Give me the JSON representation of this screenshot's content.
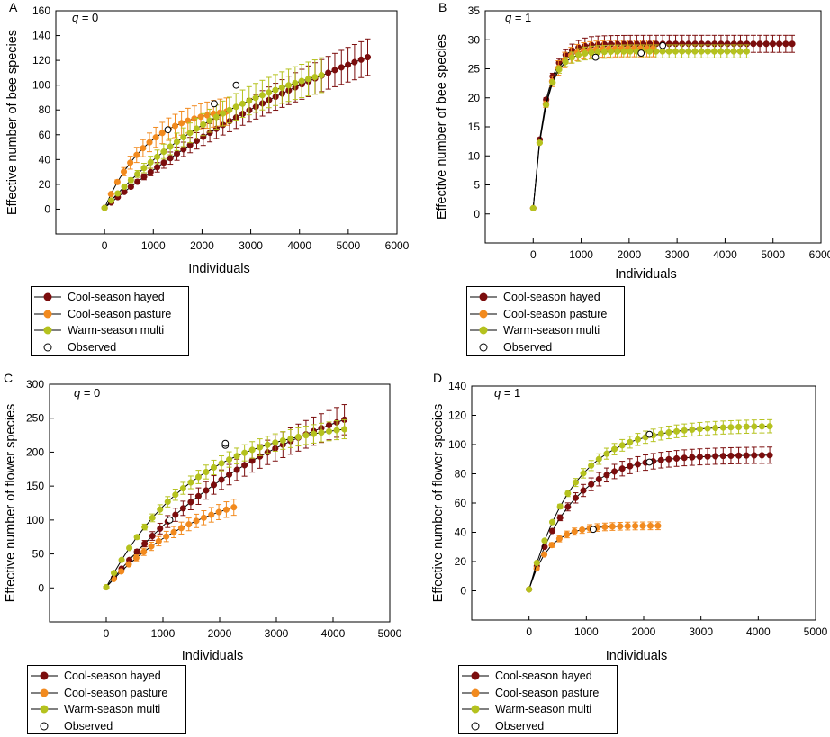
{
  "colors": {
    "hayed": "#7b0d0d",
    "pasture": "#f28a1e",
    "warm": "#b5c21e",
    "observed_fill": "#ffffff",
    "line": "#000000"
  },
  "legend": [
    {
      "label": "Cool-season hayed",
      "key": "hayed"
    },
    {
      "label": "Cool-season pasture",
      "key": "pasture"
    },
    {
      "label": "Warm-season multi",
      "key": "warm"
    },
    {
      "label": "Observed",
      "key": "observed"
    }
  ],
  "chart_data": [
    {
      "panel": "A",
      "type": "line",
      "annotation": "q = 0",
      "xlabel": "Individuals",
      "ylabel": "Effective number of bee species",
      "xlim": [
        -1000,
        6000
      ],
      "ylim": [
        -20,
        160
      ],
      "xticks": [
        0,
        1000,
        2000,
        3000,
        4000,
        5000,
        6000
      ],
      "yticks": [
        0,
        20,
        40,
        60,
        80,
        100,
        120,
        140,
        160
      ],
      "series": [
        {
          "name": "Cool-season hayed",
          "color_key": "hayed",
          "xmax": 5400,
          "asymptote": 220,
          "k": 0.00015,
          "halfwidth_frac": 0.12,
          "observed": [
            2700,
            100
          ]
        },
        {
          "name": "Cool-season pasture",
          "color_key": "pasture",
          "xmax": 2500,
          "asymptote": 84,
          "k": 0.0011,
          "halfwidth_frac": 0.14,
          "observed": [
            1300,
            64
          ]
        },
        {
          "name": "Warm-season multi",
          "color_key": "warm",
          "xmax": 4450,
          "asymptote": 142,
          "k": 0.00032,
          "halfwidth_frac": 0.13,
          "observed": [
            2250,
            85
          ]
        }
      ],
      "start_value": 1
    },
    {
      "panel": "B",
      "type": "line",
      "annotation": "q = 1",
      "xlabel": "Individuals",
      "ylabel": "Effective number of bee species",
      "xlim": [
        -1000,
        6000
      ],
      "ylim": [
        -5,
        35
      ],
      "xticks": [
        0,
        1000,
        2000,
        3000,
        4000,
        5000,
        6000
      ],
      "yticks": [
        0,
        5,
        10,
        15,
        20,
        25,
        30,
        35
      ],
      "series": [
        {
          "name": "Cool-season hayed",
          "color_key": "hayed",
          "xmax": 5400,
          "asymptote": 29.3,
          "k": 0.004,
          "halfwidth_frac": 0.05,
          "observed": [
            2700,
            29
          ]
        },
        {
          "name": "Cool-season pasture",
          "color_key": "pasture",
          "xmax": 2500,
          "asymptote": 28.5,
          "k": 0.004,
          "halfwidth_frac": 0.05,
          "observed": [
            1300,
            27
          ]
        },
        {
          "name": "Warm-season multi",
          "color_key": "warm",
          "xmax": 4450,
          "asymptote": 28.0,
          "k": 0.004,
          "halfwidth_frac": 0.04,
          "observed": [
            2250,
            27.7
          ]
        }
      ],
      "start_value": 1
    },
    {
      "panel": "C",
      "type": "line",
      "annotation": "q = 0",
      "xlabel": "Individuals",
      "ylabel": "Effective number of flower species",
      "xlim": [
        -1000,
        5000
      ],
      "ylim": [
        -50,
        300
      ],
      "xticks": [
        0,
        1000,
        2000,
        3000,
        4000,
        5000
      ],
      "yticks": [
        0,
        50,
        100,
        150,
        200,
        250,
        300
      ],
      "series": [
        {
          "name": "Cool-season hayed",
          "color_key": "hayed",
          "xmax": 4200,
          "asymptote": 340,
          "k": 0.00031,
          "halfwidth_frac": 0.09,
          "observed": [
            2100,
            210
          ]
        },
        {
          "name": "Cool-season pasture",
          "color_key": "pasture",
          "xmax": 2250,
          "asymptote": 160,
          "k": 0.0006,
          "halfwidth_frac": 0.1,
          "observed": [
            1120,
            100
          ]
        },
        {
          "name": "Warm-season multi",
          "color_key": "warm",
          "xmax": 4200,
          "asymptote": 250,
          "k": 0.00065,
          "halfwidth_frac": 0.06,
          "observed": [
            2100,
            213
          ]
        }
      ],
      "start_value": 1
    },
    {
      "panel": "D",
      "type": "line",
      "annotation": "q = 1",
      "xlabel": "Individuals",
      "ylabel": "Effective number of flower species",
      "xlim": [
        -1000,
        5000
      ],
      "ylim": [
        -20,
        140
      ],
      "xticks": [
        0,
        1000,
        2000,
        3000,
        4000,
        5000
      ],
      "yticks": [
        0,
        20,
        40,
        60,
        80,
        100,
        120,
        140
      ],
      "series": [
        {
          "name": "Cool-season hayed",
          "color_key": "hayed",
          "xmax": 4200,
          "asymptote": 93,
          "k": 0.0014,
          "halfwidth_frac": 0.06,
          "observed": [
            2100,
            88
          ]
        },
        {
          "name": "Cool-season pasture",
          "color_key": "pasture",
          "xmax": 2250,
          "asymptote": 44.5,
          "k": 0.003,
          "halfwidth_frac": 0.06,
          "observed": [
            1120,
            42
          ]
        },
        {
          "name": "Warm-season multi",
          "color_key": "warm",
          "xmax": 4200,
          "asymptote": 113,
          "k": 0.0013,
          "halfwidth_frac": 0.04,
          "observed": [
            2100,
            107
          ]
        }
      ],
      "start_value": 1
    }
  ]
}
